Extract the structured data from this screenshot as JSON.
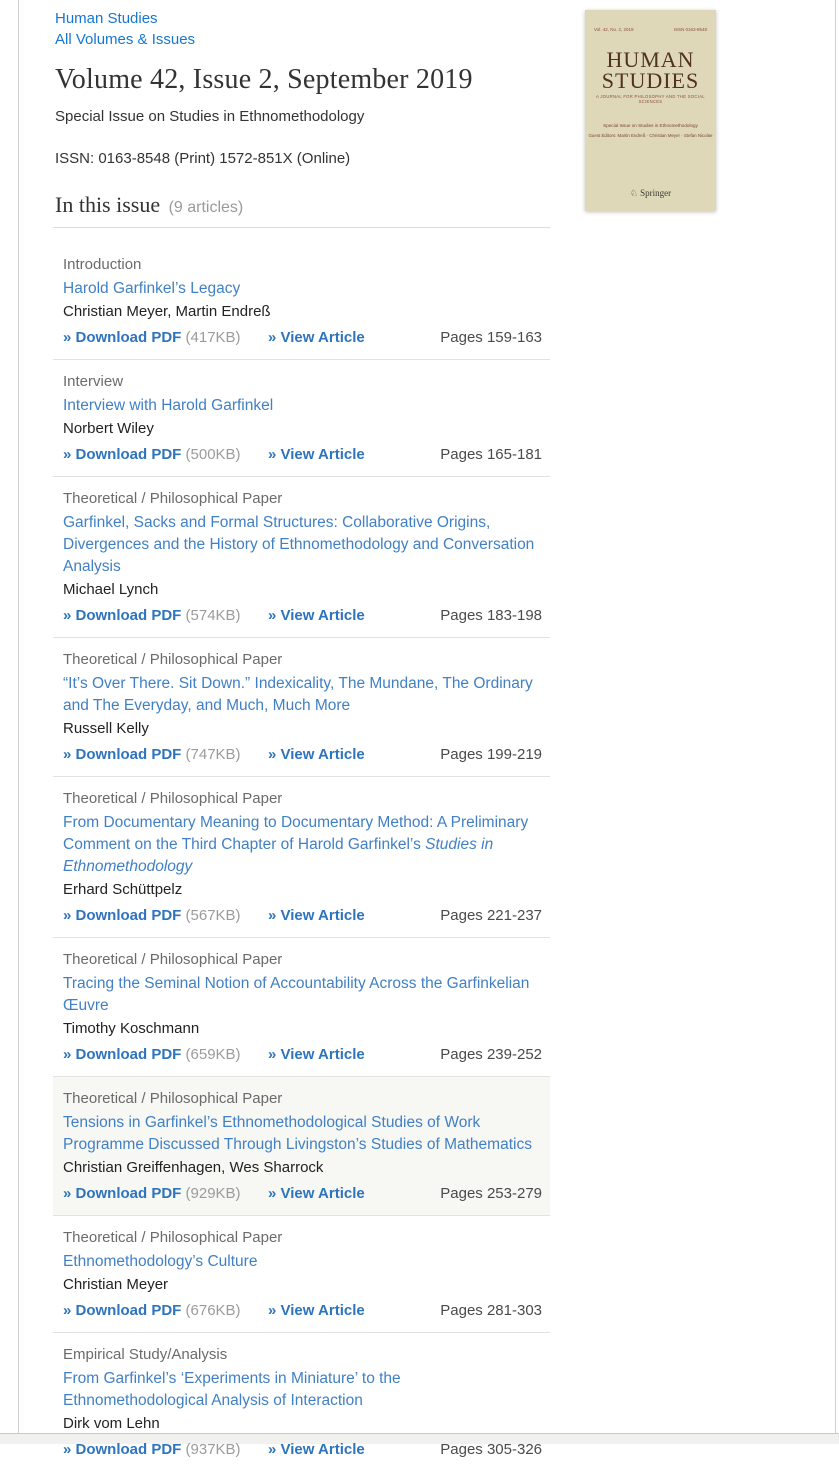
{
  "breadcrumb": {
    "journal_link": "Human Studies",
    "volumes_link": "All Volumes & Issues"
  },
  "header": {
    "title": "Volume 42, Issue 2, September 2019",
    "subtitle": "Special Issue on Studies in Ethnomethodology",
    "issn_line": "ISSN: 0163-8548 (Print) 1572-851X (Online)"
  },
  "issue_section": {
    "heading": "In this issue",
    "count_label": "(9 articles)"
  },
  "labels": {
    "download_pdf": "» Download PDF",
    "view_article": "» View Article",
    "pages_prefix": "Pages"
  },
  "colors": {
    "breadcrumb_link_blue": "#1677d2",
    "article_title_blue": "#4180c4",
    "action_link_blue": "#2e74bd",
    "category_gray": "#6b6b6b",
    "size_gray": "#9b9b9b",
    "highlight_row_bg": "#f7f7f4",
    "cover_bg": "#ded8b8",
    "cover_text": "#50321f"
  },
  "cover": {
    "vol_line": "Vol. 42, No. 2, 2019",
    "issn": "ISSN 0163-8548",
    "title_line1": "HUMAN",
    "title_line2": "STUDIES",
    "tagline": "A JOURNAL FOR PHILOSOPHY AND THE SOCIAL SCIENCES",
    "special": "Special Issue on Studies in Ethnomethodology",
    "editors": "Guest Editors: Martin Endreß · Christian Meyer · Stefan Nicolae",
    "publisher": "Springer",
    "springer_icon": "♘"
  },
  "articles": [
    {
      "category": "Introduction",
      "title_parts": [
        {
          "text": "Harold Garfinkel’s Legacy",
          "italic": false
        }
      ],
      "authors": "Christian Meyer, Martin Endreß",
      "pdf_size": "(417KB)",
      "pages": "159-163",
      "highlighted": false
    },
    {
      "category": "Interview",
      "title_parts": [
        {
          "text": "Interview with Harold Garfinkel",
          "italic": false
        }
      ],
      "authors": "Norbert Wiley",
      "pdf_size": "(500KB)",
      "pages": "165-181",
      "highlighted": false
    },
    {
      "category": "Theoretical / Philosophical Paper",
      "title_parts": [
        {
          "text": "Garfinkel, Sacks and Formal Structures: Collaborative Origins, Divergences and the History of Ethnomethodology and Conversation Analysis",
          "italic": false
        }
      ],
      "authors": "Michael Lynch",
      "pdf_size": "(574KB)",
      "pages": "183-198",
      "highlighted": false
    },
    {
      "category": "Theoretical / Philosophical Paper",
      "title_parts": [
        {
          "text": "“It’s Over There. Sit Down.” Indexicality, The Mundane, The Ordinary and The Everyday, and Much, Much More",
          "italic": false
        }
      ],
      "authors": "Russell Kelly",
      "pdf_size": "(747KB)",
      "pages": "199-219",
      "highlighted": false
    },
    {
      "category": "Theoretical / Philosophical Paper",
      "title_parts": [
        {
          "text": "From Documentary Meaning to Documentary Method: A Preliminary Comment on the Third Chapter of Harold Garfinkel’s ",
          "italic": false
        },
        {
          "text": "Studies in Ethnomethodology",
          "italic": true
        }
      ],
      "authors": "Erhard Schüttpelz",
      "pdf_size": "(567KB)",
      "pages": "221-237",
      "highlighted": false
    },
    {
      "category": "Theoretical / Philosophical Paper",
      "title_parts": [
        {
          "text": "Tracing the Seminal Notion of Accountability Across the Garfinkelian Œuvre",
          "italic": false
        }
      ],
      "authors": "Timothy Koschmann",
      "pdf_size": "(659KB)",
      "pages": "239-252",
      "highlighted": false
    },
    {
      "category": "Theoretical / Philosophical Paper",
      "title_parts": [
        {
          "text": "Tensions in Garfinkel’s Ethnomethodological Studies of Work Programme Discussed Through Livingston’s Studies of Mathematics",
          "italic": false
        }
      ],
      "authors": "Christian Greiffenhagen, Wes Sharrock",
      "pdf_size": "(929KB)",
      "pages": "253-279",
      "highlighted": true
    },
    {
      "category": "Theoretical / Philosophical Paper",
      "title_parts": [
        {
          "text": "Ethnomethodology’s Culture",
          "italic": false
        }
      ],
      "authors": "Christian Meyer",
      "pdf_size": "(676KB)",
      "pages": "281-303",
      "highlighted": false
    },
    {
      "category": "Empirical Study/Analysis",
      "title_parts": [
        {
          "text": "From Garfinkel’s ‘Experiments in Miniature’ to the Ethnomethodological Analysis of Interaction",
          "italic": false
        }
      ],
      "authors": "Dirk vom Lehn",
      "pdf_size": "(937KB)",
      "pages": "305-326",
      "highlighted": false
    }
  ]
}
